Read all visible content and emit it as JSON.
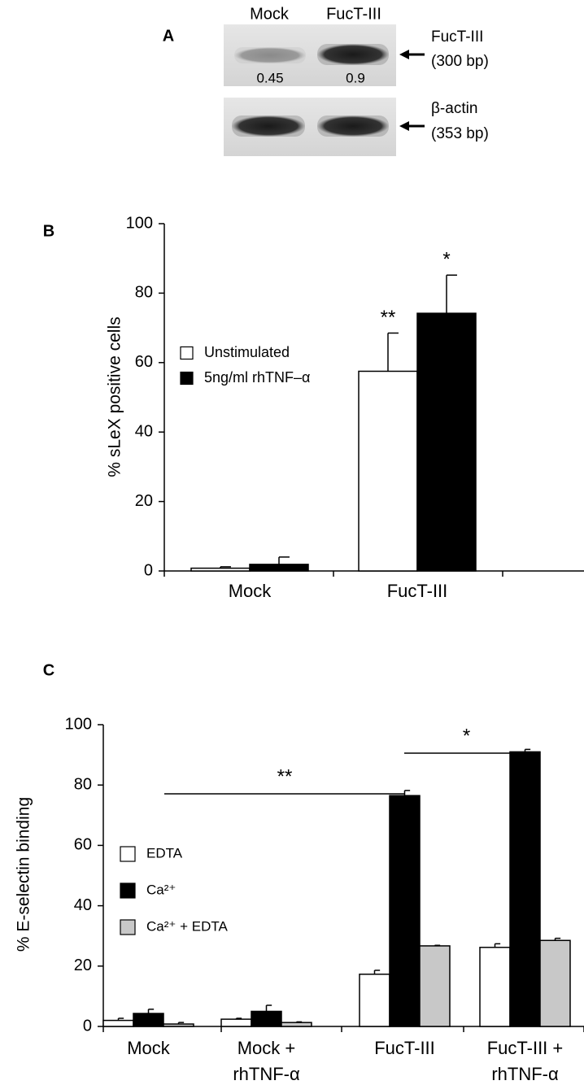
{
  "panel_a": {
    "label": "A",
    "lanes": [
      "Mock",
      "FucT-III"
    ],
    "band_values": [
      0.45,
      0.9
    ],
    "genes": [
      {
        "name": "FucT-III",
        "size": "(300 bp)"
      },
      {
        "name": "β-actin",
        "size": "(353 bp)"
      }
    ]
  },
  "chart_data": [
    {
      "type": "bar",
      "label": "B",
      "y_label": "% sLeX positive cells",
      "categories": [
        "Mock",
        "FucT-III"
      ],
      "series": [
        {
          "name": "Unstimulated",
          "color": "#ffffff",
          "values": [
            0.8,
            57.5
          ],
          "errors": [
            0.4,
            11
          ]
        },
        {
          "name": "5ng/ml rhTNF–α",
          "color": "#000000",
          "values": [
            1.9,
            74.2
          ],
          "errors": [
            2.1,
            11
          ]
        }
      ],
      "annotations": [
        "**",
        "*"
      ],
      "ylim": [
        0,
        100
      ],
      "yticks": [
        0,
        20,
        40,
        60,
        80,
        100
      ],
      "grid": false,
      "legend": "left"
    },
    {
      "type": "bar",
      "label": "C",
      "y_label": "% E-selectin binding",
      "categories": [
        [
          "Mock"
        ],
        [
          "Mock +",
          "rhTNF-α"
        ],
        [
          "FucT-III"
        ],
        [
          "FucT-III +",
          "rhTNF-α"
        ]
      ],
      "series": [
        {
          "name": "EDTA",
          "color": "#ffffff",
          "values": [
            2,
            2.4,
            17.3,
            26.2
          ],
          "errors": [
            0.7,
            0.3,
            1.3,
            1.2
          ]
        },
        {
          "name": "Ca²⁺",
          "color": "#000000",
          "values": [
            4.3,
            5,
            76.5,
            91
          ],
          "errors": [
            1.4,
            2,
            1.7,
            0.8
          ]
        },
        {
          "name": "Ca²⁺ + EDTA",
          "color": "#c8c8c8",
          "values": [
            0.8,
            1.3,
            26.7,
            28.5
          ],
          "errors": [
            0.5,
            0.2,
            0.2,
            0.7
          ]
        }
      ],
      "annotations": [
        "**",
        "*"
      ],
      "ylim": [
        0,
        100
      ],
      "yticks": [
        0,
        20,
        40,
        60,
        80,
        100
      ],
      "grid": false,
      "legend": "left"
    }
  ]
}
